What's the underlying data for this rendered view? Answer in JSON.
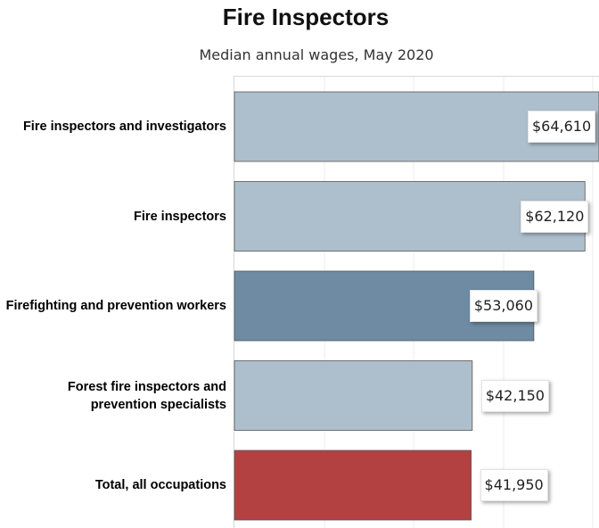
{
  "chart_data": {
    "type": "bar",
    "orientation": "horizontal",
    "title": "Fire Inspectors",
    "subtitle": "Median annual wages, May 2020",
    "categories": [
      "Fire inspectors and investigators",
      "Fire inspectors",
      "Firefighting and prevention workers",
      "Forest fire inspectors and prevention specialists",
      "Total, all occupations"
    ],
    "values": [
      64610,
      62120,
      53060,
      42150,
      41950
    ],
    "value_labels": [
      "$64,610",
      "$62,120",
      "$53,060",
      "$42,150",
      "$41,950"
    ],
    "bar_colors": [
      "#adbfcc",
      "#adbfcc",
      "#6e8ba3",
      "#adbfcc",
      "#b34141"
    ],
    "xlim": [
      0,
      64610
    ],
    "grid": true,
    "xlabel": "",
    "ylabel": ""
  }
}
